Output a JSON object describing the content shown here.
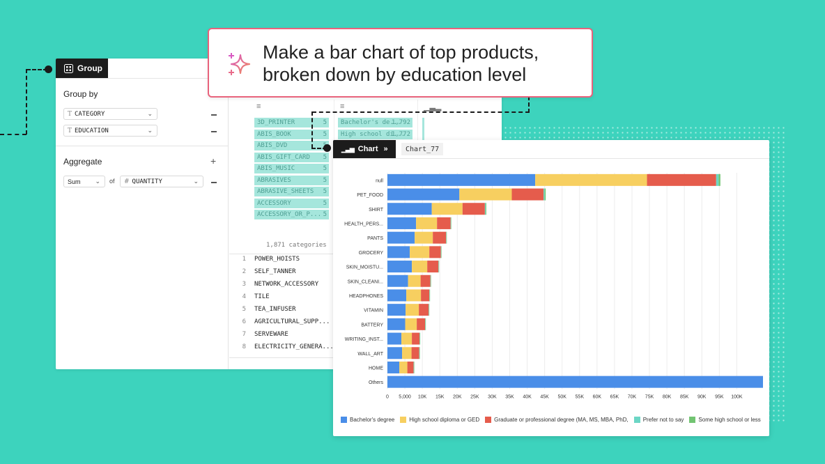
{
  "prompt": {
    "line1": "Make a bar chart of top products,",
    "line2": "broken down by education level"
  },
  "group_panel": {
    "tab_label": "Group",
    "group_by_title": "Group by",
    "group_by_fields": [
      "CATEGORY",
      "EDUCATION"
    ],
    "aggregate_title": "Aggregate",
    "aggregate_func": "Sum",
    "aggregate_of": "of",
    "aggregate_field": "QUANTITY",
    "type_glyph_text": "T",
    "type_glyph_number": "#"
  },
  "preview": {
    "category_chips": [
      {
        "label": "3D_PRINTER",
        "count": "5"
      },
      {
        "label": "ABIS_BOOK",
        "count": "5"
      },
      {
        "label": "ABIS_DVD",
        "count": "5"
      },
      {
        "label": "ABIS_GIFT_CARD",
        "count": "5"
      },
      {
        "label": "ABIS_MUSIC",
        "count": "5"
      },
      {
        "label": "ABRASIVES",
        "count": "5"
      },
      {
        "label": "ABRASIVE_SHEETS",
        "count": "5"
      },
      {
        "label": "ACCESSORY",
        "count": "5"
      },
      {
        "label": "ACCESSORY_OR_P...",
        "count": "5"
      }
    ],
    "education_chips": [
      {
        "label": "Bachelor's de...",
        "count": "1,792"
      },
      {
        "label": "High school di...",
        "count": "1,772"
      }
    ],
    "categories_count": "1,871 categories",
    "rows": [
      {
        "n": "1",
        "v": "POWER_HOISTS"
      },
      {
        "n": "2",
        "v": "SELF_TANNER"
      },
      {
        "n": "3",
        "v": "NETWORK_ACCESSORY"
      },
      {
        "n": "4",
        "v": "TILE"
      },
      {
        "n": "5",
        "v": "TEA_INFUSER"
      },
      {
        "n": "6",
        "v": "AGRICULTURAL_SUPP..."
      },
      {
        "n": "7",
        "v": "SERVEWARE"
      },
      {
        "n": "8",
        "v": "ELECTRICITY_GENERA..."
      }
    ]
  },
  "chart_panel": {
    "tab_label": "Chart",
    "chart_name": "Chart_77"
  },
  "chart_data": {
    "type": "bar",
    "orientation": "horizontal",
    "stacked": true,
    "categories": [
      "null",
      "PET_FOOD",
      "SHIRT",
      "HEALTH_PERS...",
      "PANTS",
      "GROCERY",
      "SKIN_MOISTU...",
      "SKIN_CLEANI...",
      "HEADPHONES",
      "VITAMIN",
      "BATTERY",
      "WRITING_INST...",
      "WALL_ART",
      "HOME",
      "Others"
    ],
    "series": [
      {
        "name": "Bachelor's degree",
        "color": "#4a8ee8",
        "values": [
          42300,
          20600,
          12700,
          8200,
          7800,
          6400,
          7000,
          5900,
          5400,
          5200,
          5100,
          4000,
          4200,
          3400,
          107500
        ]
      },
      {
        "name": "High school diploma or GED",
        "color": "#f7cf60",
        "values": [
          32000,
          15000,
          8800,
          6000,
          5200,
          5600,
          4400,
          3600,
          4200,
          3800,
          3300,
          3000,
          2700,
          2300,
          0
        ]
      },
      {
        "name": "Graduate or professional degree (MA, MS, MBA, PhD,",
        "color": "#e55c4c",
        "values": [
          19800,
          9100,
          6400,
          3900,
          3800,
          3300,
          3200,
          2800,
          2400,
          2800,
          2400,
          2200,
          2200,
          1800,
          0
        ]
      },
      {
        "name": "Prefer not to say",
        "color": "#6cd6c5",
        "values": [
          700,
          300,
          200,
          100,
          100,
          100,
          100,
          100,
          100,
          100,
          100,
          100,
          100,
          100,
          0
        ]
      },
      {
        "name": "Some high school or less",
        "color": "#72c472",
        "values": [
          500,
          300,
          200,
          100,
          100,
          100,
          100,
          100,
          100,
          100,
          100,
          100,
          100,
          100,
          0
        ]
      }
    ],
    "xlim": [
      0,
      107500
    ],
    "x_ticks": [
      0,
      5000,
      10000,
      15000,
      20000,
      25000,
      30000,
      35000,
      40000,
      45000,
      50000,
      55000,
      60000,
      65000,
      70000,
      75000,
      80000,
      85000,
      90000,
      95000,
      100000
    ],
    "x_tick_labels": [
      "0",
      "5,000",
      "10K",
      "15K",
      "20K",
      "25K",
      "30K",
      "35K",
      "40K",
      "45K",
      "50K",
      "55K",
      "60K",
      "65K",
      "70K",
      "75K",
      "80K",
      "85K",
      "90K",
      "95K",
      "100K"
    ],
    "grid": true,
    "legend_position": "bottom"
  }
}
